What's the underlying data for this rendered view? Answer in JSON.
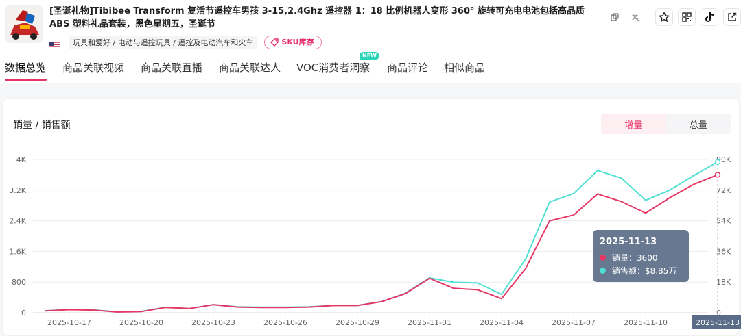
{
  "product": {
    "title": "[圣诞礼物]Tibibee Transform 复活节遥控车男孩 3-15,2.4Ghz 遥控器 1：18 比例机器人变形 360° 旋转可充电电池包括高品质 ABS 塑料礼品套装，黑色星期五，圣诞节",
    "breadcrumb": "玩具和爱好 / 电动与遥控玩具 / 遥控及电动汽车和火车",
    "sku_button": "SKU库存"
  },
  "tabs": [
    {
      "label": "数据总览"
    },
    {
      "label": "商品关联视频"
    },
    {
      "label": "商品关联直播"
    },
    {
      "label": "商品关联达人"
    },
    {
      "label": "VOC消费者洞察"
    },
    {
      "label": "商品评论"
    },
    {
      "label": "相似商品"
    }
  ],
  "new_badge": "NEW",
  "card": {
    "title": "销量 / 销售额",
    "toggle_increment": "增量",
    "toggle_total": "总量"
  },
  "tooltip": {
    "date": "2025-11-13",
    "sales_label": "销量：3600",
    "revenue_label": "销售额：$8.85万"
  },
  "colors": {
    "sales": "#e63666",
    "revenue": "#4fdfd3",
    "accent": "#e63666"
  },
  "icons": [
    "copy-icon",
    "translate-icon",
    "star-icon",
    "qr-icon",
    "tiktok-icon",
    "share-icon"
  ],
  "chart_data": {
    "type": "line",
    "x": [
      "2025-10-16",
      "2025-10-17",
      "2025-10-18",
      "2025-10-19",
      "2025-10-20",
      "2025-10-21",
      "2025-10-22",
      "2025-10-23",
      "2025-10-24",
      "2025-10-25",
      "2025-10-26",
      "2025-10-27",
      "2025-10-28",
      "2025-10-29",
      "2025-10-30",
      "2025-10-31",
      "2025-11-01",
      "2025-11-02",
      "2025-11-03",
      "2025-11-04",
      "2025-11-05",
      "2025-11-06",
      "2025-11-07",
      "2025-11-08",
      "2025-11-09",
      "2025-11-10",
      "2025-11-11",
      "2025-11-12",
      "2025-11-13"
    ],
    "xticks": [
      "2025-10-17",
      "2025-10-20",
      "2025-10-23",
      "2025-10-26",
      "2025-10-29",
      "2025-11-01",
      "2025-11-04",
      "2025-11-07",
      "2025-11-10",
      "2025-11-13"
    ],
    "y_left_ticks": [
      "0",
      "800",
      "1.6K",
      "2.4K",
      "3.2K",
      "4K"
    ],
    "y_right_ticks": [
      "0",
      "18K",
      "36K",
      "54K",
      "72K",
      "90K"
    ],
    "ylim_left": [
      0,
      4000
    ],
    "ylim_right": [
      0,
      90000
    ],
    "series": [
      {
        "name": "销量",
        "axis": "left",
        "values": [
          50,
          80,
          70,
          20,
          30,
          140,
          110,
          210,
          150,
          140,
          140,
          150,
          190,
          190,
          290,
          500,
          900,
          640,
          600,
          370,
          1150,
          2400,
          2550,
          3100,
          2900,
          2600,
          3000,
          3350,
          3600
        ]
      },
      {
        "name": "销售额",
        "axis": "right",
        "values": [
          1200,
          1900,
          1700,
          500,
          800,
          3200,
          2500,
          4800,
          3500,
          3300,
          3300,
          3500,
          4300,
          4300,
          6500,
          11500,
          20500,
          17900,
          17500,
          10800,
          31500,
          65000,
          70000,
          83500,
          79000,
          66000,
          72000,
          80500,
          88500
        ]
      }
    ],
    "grid": true,
    "highlight_index": 28
  }
}
